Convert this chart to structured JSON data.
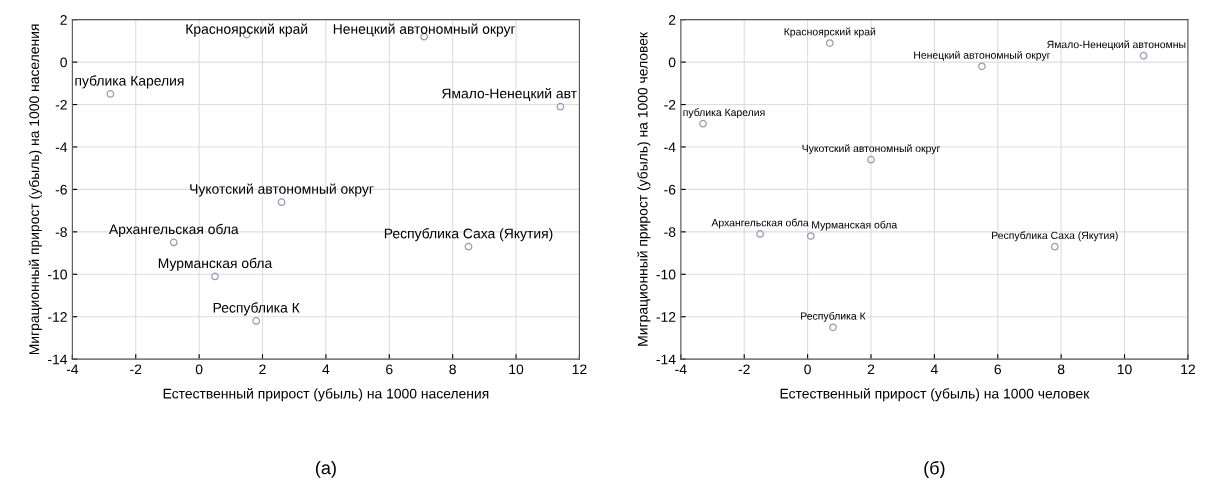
{
  "chart_data": [
    {
      "type": "scatter",
      "xlabel": "Естественный прирост (убыль) на 1000 населения",
      "ylabel": "Миграционный прирост (убыль) на 1000 населения",
      "series": [
        {
          "color": "#9a9ab8",
          "x": [
            1.5,
            7.1,
            -2.8,
            11.4,
            2.6,
            -0.8,
            8.5,
            0.5,
            1.8
          ],
          "values": [
            1.3,
            1.2,
            -1.5,
            -2.1,
            -6.6,
            -8.5,
            -8.7,
            -10.1,
            -12.2
          ]
        }
      ],
      "annotations": [
        {
          "text": "Красноярский край",
          "x": 1.5,
          "y": 1.3
        },
        {
          "text": "Ненецкий автономный округ",
          "x": 7.1,
          "y": 1.2
        },
        {
          "text": "публика Карелия",
          "x": -2.8,
          "y": -1.5
        },
        {
          "text": "Ямало-Ненецкий авт",
          "x": 11.4,
          "y": -2.1
        },
        {
          "text": "Чукотский автономный округ",
          "x": 2.6,
          "y": -6.6
        },
        {
          "text": "Архангельская обла",
          "x": -0.8,
          "y": -8.5
        },
        {
          "text": "Республика Саха (Якутия)",
          "x": 8.5,
          "y": -8.7
        },
        {
          "text": "Мурманская обла",
          "x": 0.5,
          "y": -10.1
        },
        {
          "text": "Республика К",
          "x": 1.8,
          "y": -12.2
        },
        "(а)"
      ],
      "xlim": [
        -4,
        12
      ],
      "xticks": [
        -4,
        -2,
        0,
        2,
        4,
        6,
        8,
        10,
        12
      ],
      "ylim": [
        -14,
        2
      ],
      "yticks": [
        -14,
        -12,
        -10,
        -8,
        -6,
        -4,
        -2,
        0,
        2
      ],
      "grid": true,
      "marker": "circle"
    },
    {
      "type": "scatter",
      "xlabel": "Естественный прирост (убыль) на 1000 человек",
      "ylabel": "Миграционный прирост (убыль) на 1000 человек",
      "series": [
        {
          "color": "#9a9ab8",
          "x": [
            0.7,
            5.5,
            10.6,
            -3.3,
            2.0,
            -1.5,
            0.1,
            7.8,
            0.8
          ],
          "values": [
            0.9,
            -0.2,
            0.3,
            -2.9,
            -4.6,
            -8.1,
            -8.2,
            -8.7,
            -12.5
          ]
        }
      ],
      "annotations": [
        {
          "text": "Красноярский край",
          "x": 0.7,
          "y": 0.9
        },
        {
          "text": "Ненецкий автономный округ",
          "x": 5.5,
          "y": -0.2
        },
        {
          "text": "Ямало-Ненецкий автономны",
          "x": 10.6,
          "y": 0.3
        },
        {
          "text": "публика Карелия",
          "x": -3.3,
          "y": -2.9
        },
        {
          "text": "Чукотский автономный округ",
          "x": 2.0,
          "y": -4.6
        },
        {
          "text": "Архангельская обла",
          "x": -1.5,
          "y": -8.1
        },
        {
          "text": "Мурманская обла",
          "x": 0.1,
          "y": -8.2
        },
        {
          "text": "Республика Саха (Якутия)",
          "x": 7.8,
          "y": -8.7
        },
        {
          "text": "Республика К",
          "x": 0.8,
          "y": -12.5
        },
        "(б)"
      ],
      "xlim": [
        -4,
        12
      ],
      "xticks": [
        -4,
        -2,
        0,
        2,
        4,
        6,
        8,
        10,
        12
      ],
      "ylim": [
        -14,
        2
      ],
      "yticks": [
        -14,
        -12,
        -10,
        -8,
        -6,
        -4,
        -2,
        0,
        2
      ],
      "grid": true,
      "marker": "circle"
    }
  ]
}
